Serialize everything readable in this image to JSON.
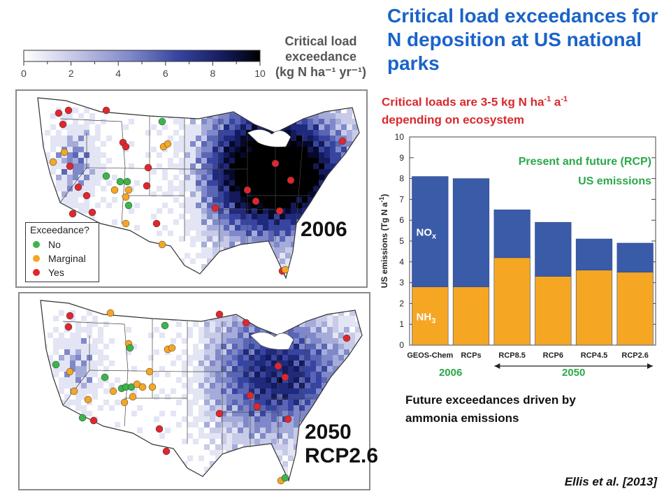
{
  "title": "Critical load exceedances for N deposition at US national parks",
  "critical_note": {
    "text": "Critical loads are 3-5 kg N ha",
    "sup1": "-1",
    "mid": " a",
    "sup2": "-1",
    "line2": "depending on ecosystem"
  },
  "colorbar": {
    "title_line1": "Critical load",
    "title_line2": "exceedance",
    "title_line3": "(kg N ha⁻¹ yr⁻¹)",
    "ticks": [
      "0",
      "2",
      "4",
      "6",
      "8",
      "10"
    ],
    "min": 0,
    "max": 10,
    "colors": [
      "#ffffff",
      "#c8cbe8",
      "#7f89c9",
      "#3845a0",
      "#141a5a",
      "#000000"
    ]
  },
  "maps": [
    {
      "label": "2006",
      "label_line2": ""
    },
    {
      "label": "2050",
      "label_line2": "RCP2.6"
    }
  ],
  "legend": {
    "title": "Exceedance?",
    "items": [
      {
        "label": "No",
        "color": "#3bb54a"
      },
      {
        "label": "Marginal",
        "color": "#f5a623"
      },
      {
        "label": "Yes",
        "color": "#e0262e"
      }
    ]
  },
  "chart_data": {
    "type": "bar",
    "stacked": true,
    "categories": [
      "GEOS-Chem",
      "RCPs",
      "RCP8.5",
      "RCP6",
      "RCP4.5",
      "RCP2.6"
    ],
    "series": [
      {
        "name": "NH3",
        "label_main": "NH",
        "label_sub": "3",
        "color": "#f5a623",
        "values": [
          2.8,
          2.8,
          4.2,
          3.3,
          3.6,
          3.5
        ]
      },
      {
        "name": "NOx",
        "label_main": "NO",
        "label_sub": "x",
        "color": "#3a5ba8",
        "values": [
          5.3,
          5.2,
          2.3,
          2.6,
          1.5,
          1.4
        ]
      }
    ],
    "ylabel": "US emissions (Tg N a",
    "ylabel_sup": "-1",
    "ylabel_end": ")",
    "ylim": [
      0,
      10
    ],
    "yticks": [
      "0",
      "1",
      "2",
      "3",
      "4",
      "5",
      "6",
      "7",
      "8",
      "9",
      "10"
    ],
    "annotation": {
      "line1": "Present and future (RCP)",
      "line2": "US emissions"
    },
    "groups": [
      {
        "label": "2006"
      },
      {
        "label": "2050"
      }
    ]
  },
  "future_note": {
    "line1": "Future exceedances driven by",
    "line2": "ammonia emissions"
  },
  "citation": "Ellis et al. [2013]"
}
